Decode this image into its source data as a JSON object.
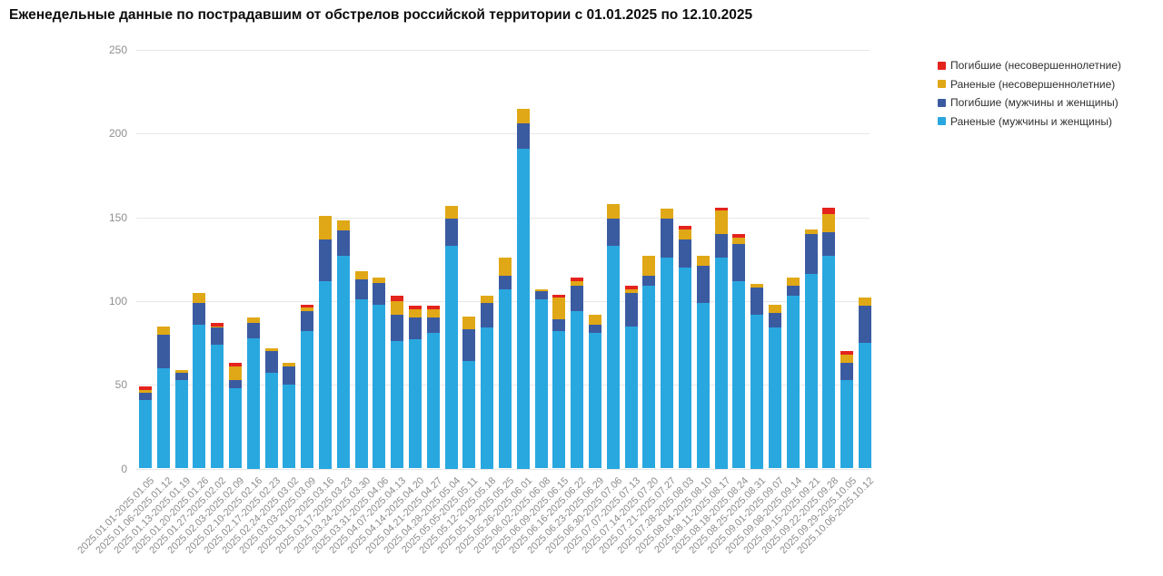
{
  "title": "Еженедельные данные по пострадавшим от обстрелов российской территории с 01.01.2025 по 12.10.2025",
  "y_axis": {
    "tick_labels": [
      "0",
      "50",
      "100",
      "150",
      "200",
      "250"
    ],
    "tick_values": [
      0,
      50,
      100,
      150,
      200,
      250
    ]
  },
  "legend": [
    {
      "label": "Погибшие (несовершеннолетние)",
      "color": "#e4231c",
      "series_key": "dead_minors"
    },
    {
      "label": "Раненые (несовершеннолетние)",
      "color": "#e0a816",
      "series_key": "wounded_minors"
    },
    {
      "label": "Погибшие (мужчины и женщины)",
      "color": "#3b5ba1",
      "series_key": "dead_adults"
    },
    {
      "label": "Раненые (мужчины и женщины)",
      "color": "#29a8e0",
      "series_key": "wounded_adults"
    }
  ],
  "chart_data": {
    "type": "bar",
    "stacked": true,
    "title": "Еженедельные данные по пострадавшим от обстрелов российской территории с 01.01.2025 по 12.10.2025",
    "xlabel": "",
    "ylabel": "",
    "ylim": [
      0,
      250
    ],
    "grid": true,
    "legend_position": "top-right",
    "categories": [
      "2025.01.01-2025.01.05",
      "2025.01.06-2025.01.12",
      "2025.01.13-2025.01.19",
      "2025.01.20-2025.01.26",
      "2025.01.27-2025.02.02",
      "2025.02.03-2025.02.09",
      "2025.02.10-2025.02.16",
      "2025.02.17-2025.02.23",
      "2025.02.24-2025.03.02",
      "2025.03.03-2025.03.09",
      "2025.03.10-2025.03.16",
      "2025.03.17-2025.03.23",
      "2025.03.24-2025.03.30",
      "2025.03.31-2025.04.06",
      "2025.04.07-2025.04.13",
      "2025.04.14-2025.04.20",
      "2025.04.21-2025.04.27",
      "2025.04.28-2025.05.04",
      "2025.05.05-2025.05.11",
      "2025.05.12-2025.05.18",
      "2025.05.19-2025.05.25",
      "2025.05.26-2025.06.01",
      "2025.06.02-2025.06.08",
      "2025.06.09-2025.06.15",
      "2025.06.16-2025.06.22",
      "2025.06.23-2025.06.29",
      "2025.06.30-2025.07.06",
      "2025.07.07-2025.07.13",
      "2025.07.14-2025.07.20",
      "2025.07.21-2025.07.27",
      "2025.07.28-2025.08.03",
      "2025.08.04-2025.08.10",
      "2025.08.11-2025.08.17",
      "2025.08.18-2025.08.24",
      "2025.08.25-2025.08.31",
      "2025.09.01-2025.09.07",
      "2025.09.08-2025.09.14",
      "2025.09.15-2025.09.21",
      "2025.09.22-2025.09.28",
      "2025.09.29-2025.10.05",
      "2025.10.06-2025.10.12"
    ],
    "series": [
      {
        "name": "Раненые (мужчины и женщины)",
        "color": "#29a8e0",
        "values": [
          41,
          60,
          53,
          86,
          74,
          48,
          78,
          57,
          50,
          82,
          112,
          127,
          101,
          98,
          76,
          77,
          81,
          133,
          64,
          84,
          107,
          191,
          101,
          82,
          94,
          81,
          133,
          85,
          109,
          126,
          120,
          99,
          126,
          112,
          92,
          84,
          103,
          116,
          127,
          53,
          75
        ]
      },
      {
        "name": "Погибшие (мужчины и женщины)",
        "color": "#3b5ba1",
        "values": [
          4,
          20,
          4,
          13,
          10,
          5,
          9,
          13,
          11,
          12,
          25,
          15,
          12,
          13,
          16,
          13,
          9,
          16,
          19,
          15,
          8,
          15,
          5,
          7,
          15,
          5,
          16,
          20,
          6,
          23,
          17,
          22,
          14,
          22,
          16,
          9,
          6,
          24,
          14,
          10,
          22
        ]
      },
      {
        "name": "Раненые (несовершеннолетние)",
        "color": "#e0a816",
        "values": [
          2,
          5,
          2,
          6,
          1,
          8,
          3,
          2,
          2,
          2,
          14,
          6,
          5,
          3,
          8,
          5,
          5,
          8,
          8,
          4,
          11,
          9,
          1,
          13,
          3,
          6,
          9,
          2,
          12,
          6,
          6,
          6,
          14,
          4,
          2,
          5,
          5,
          3,
          11,
          5,
          5
        ]
      },
      {
        "name": "Погибшие (несовершеннолетние)",
        "color": "#e4231c",
        "values": [
          2,
          0,
          0,
          0,
          2,
          2,
          0,
          0,
          0,
          2,
          0,
          0,
          0,
          0,
          3,
          2,
          2,
          0,
          0,
          0,
          0,
          0,
          0,
          2,
          2,
          0,
          0,
          2,
          0,
          0,
          2,
          0,
          2,
          2,
          0,
          0,
          0,
          0,
          4,
          2,
          0
        ]
      }
    ]
  }
}
